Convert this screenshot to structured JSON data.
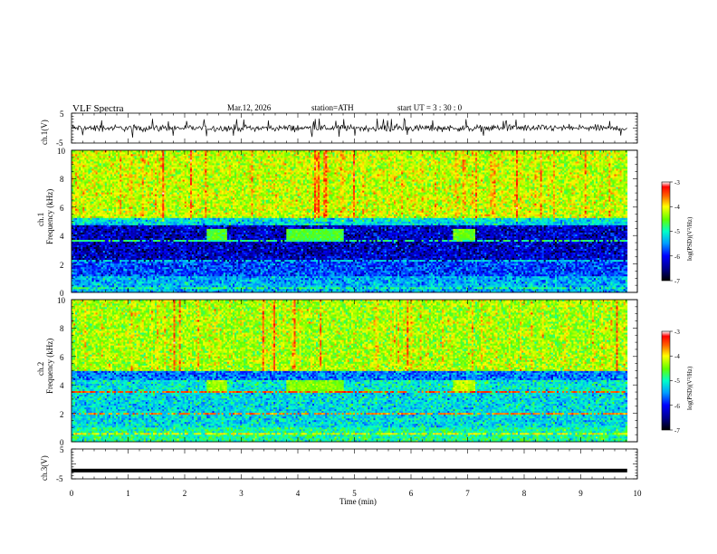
{
  "header": {
    "title": "VLF  Spectra",
    "date": "Mar.12, 2026",
    "station": "station=ATH",
    "start_ut": "start  UT  =   3  : 30 : 0"
  },
  "chart_data": [
    {
      "type": "line",
      "name": "ch1-waveform",
      "ylabel": "ch.1(V)",
      "ylim": [
        -5,
        5
      ],
      "yticks": [
        "5",
        "-5"
      ],
      "xlim": [
        0,
        10
      ],
      "x_extent": [
        0,
        9.82
      ],
      "description_values": {
        "baseline": 0,
        "typical_amplitude": 1.2,
        "spike_amplitude": 3.2
      }
    },
    {
      "type": "heatmap",
      "name": "ch1-spectrogram",
      "ylabel_line1": "ch.1",
      "ylabel_line2": "Frequency  (kHz)",
      "ylim": [
        0,
        10
      ],
      "yticks": [
        "0",
        "2",
        "4",
        "6",
        "8",
        "10"
      ],
      "xlim": [
        0,
        10
      ],
      "x_extent": [
        0,
        9.82
      ],
      "colorbar": {
        "label": "log(PSD)(V²/Hz)",
        "range": [
          -7,
          -3
        ],
        "ticks": [
          "-3",
          "-4",
          "-5",
          "-6",
          "-7"
        ]
      },
      "bands_khz": [
        {
          "from": 5.3,
          "to": 10,
          "log_psd": -4.4
        },
        {
          "from": 4.8,
          "to": 5.3,
          "log_psd": -5.4
        },
        {
          "from": 2.2,
          "to": 4.8,
          "log_psd": -6.4
        },
        {
          "from": 1.2,
          "to": 2.2,
          "log_psd": -6.0
        },
        {
          "from": 0,
          "to": 1.2,
          "log_psd": -5.6
        }
      ],
      "features": [
        {
          "kind": "emission",
          "t_min": 2.4,
          "t_max": 2.75,
          "f_khz": 4.0,
          "log_psd": -4.8
        },
        {
          "kind": "emission",
          "t_min": 3.8,
          "t_max": 4.8,
          "f_khz": 4.0,
          "log_psd": -4.8
        },
        {
          "kind": "emission",
          "t_min": 6.75,
          "t_max": 7.15,
          "f_khz": 4.0,
          "log_psd": -4.7
        },
        {
          "kind": "line",
          "f_khz": 2.25,
          "log_psd": -5.4
        },
        {
          "kind": "line",
          "f_khz": 3.7,
          "log_psd": -5.0
        },
        {
          "kind": "line",
          "f_khz": 0.3,
          "log_psd": -5.0
        }
      ]
    },
    {
      "type": "heatmap",
      "name": "ch2-spectrogram",
      "ylabel_line1": "ch.2",
      "ylabel_line2": "Frequency  (kHz)",
      "ylim": [
        0,
        10
      ],
      "yticks": [
        "0",
        "2",
        "4",
        "6",
        "8",
        "10"
      ],
      "xlim": [
        0,
        10
      ],
      "x_extent": [
        0,
        9.82
      ],
      "colorbar": {
        "label": "log(PSD)(V²/Hz)",
        "range": [
          -7,
          -3
        ],
        "ticks": [
          "-3",
          "-4",
          "-5",
          "-6",
          "-7"
        ]
      },
      "bands_khz": [
        {
          "from": 5.0,
          "to": 10,
          "log_psd": -4.5
        },
        {
          "from": 4.3,
          "to": 5.0,
          "log_psd": -5.8
        },
        {
          "from": 3.4,
          "to": 4.3,
          "log_psd": -5.3
        },
        {
          "from": 1.0,
          "to": 3.4,
          "log_psd": -5.4
        },
        {
          "from": 0,
          "to": 1.0,
          "log_psd": -5.1
        }
      ],
      "features": [
        {
          "kind": "emission",
          "t_min": 2.4,
          "t_max": 2.75,
          "f_khz": 3.9,
          "log_psd": -4.5
        },
        {
          "kind": "emission",
          "t_min": 3.8,
          "t_max": 4.8,
          "f_khz": 3.9,
          "log_psd": -4.6
        },
        {
          "kind": "emission",
          "t_min": 6.75,
          "t_max": 7.15,
          "f_khz": 3.9,
          "log_psd": -4.4
        },
        {
          "kind": "line",
          "f_khz": 3.5,
          "log_psd": -3.6
        },
        {
          "kind": "line",
          "f_khz": 2.0,
          "log_psd": -3.8
        },
        {
          "kind": "line",
          "f_khz": 0.6,
          "log_psd": -4.2
        }
      ]
    },
    {
      "type": "line",
      "name": "ch3-waveform",
      "ylabel": "ch.3(V)",
      "ylim": [
        -5,
        5
      ],
      "yticks": [
        "5",
        "-5"
      ],
      "xlim": [
        0,
        10
      ],
      "x_extent": [
        0,
        9.82
      ],
      "description_values": {
        "constant_level": -2.2
      }
    }
  ],
  "xaxis": {
    "label": "Time  (min)",
    "ticks": [
      "0",
      "1",
      "2",
      "3",
      "4",
      "5",
      "6",
      "7",
      "8",
      "9",
      "10"
    ]
  }
}
